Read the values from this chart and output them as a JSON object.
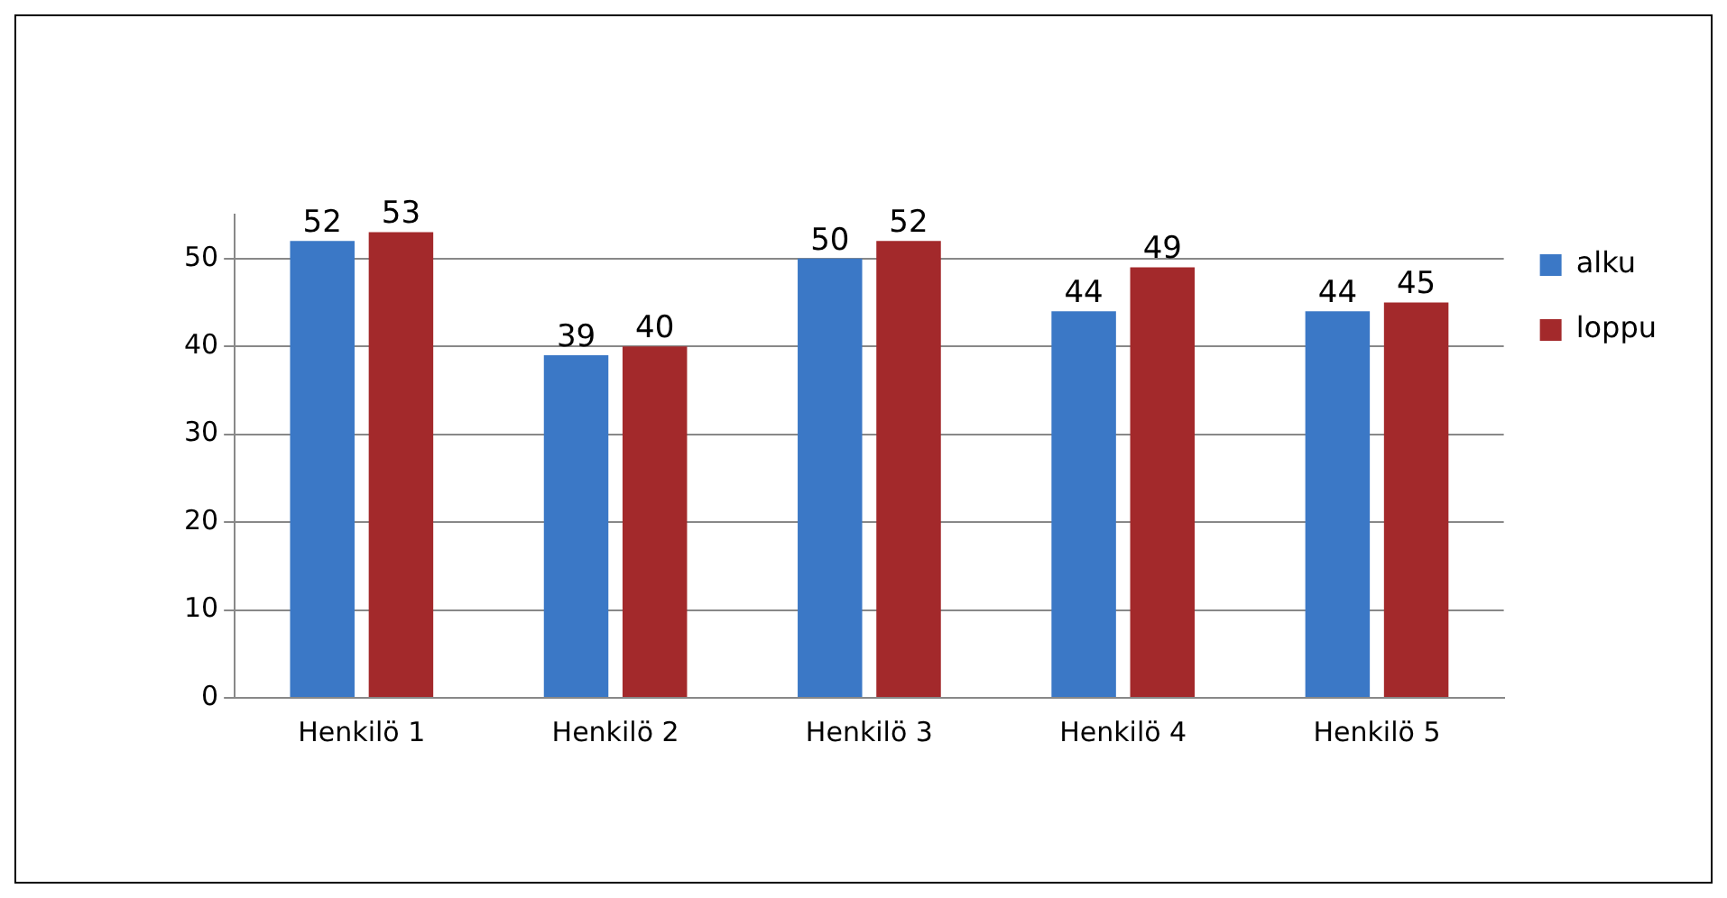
{
  "chart_data": {
    "type": "bar",
    "categories": [
      "Henkilö 1",
      "Henkilö 2",
      "Henkilö 3",
      "Henkilö 4",
      "Henkilö 5"
    ],
    "series": [
      {
        "name": "alku",
        "color": "#3b78c6",
        "values": [
          52,
          39,
          50,
          44,
          44
        ]
      },
      {
        "name": "loppu",
        "color": "#a3292b",
        "values": [
          53,
          40,
          52,
          49,
          45
        ]
      }
    ],
    "ylim": [
      0,
      55
    ],
    "yticks": [
      0,
      10,
      20,
      30,
      40,
      50
    ],
    "grid": "y",
    "legend": "right",
    "data_labels": true
  }
}
